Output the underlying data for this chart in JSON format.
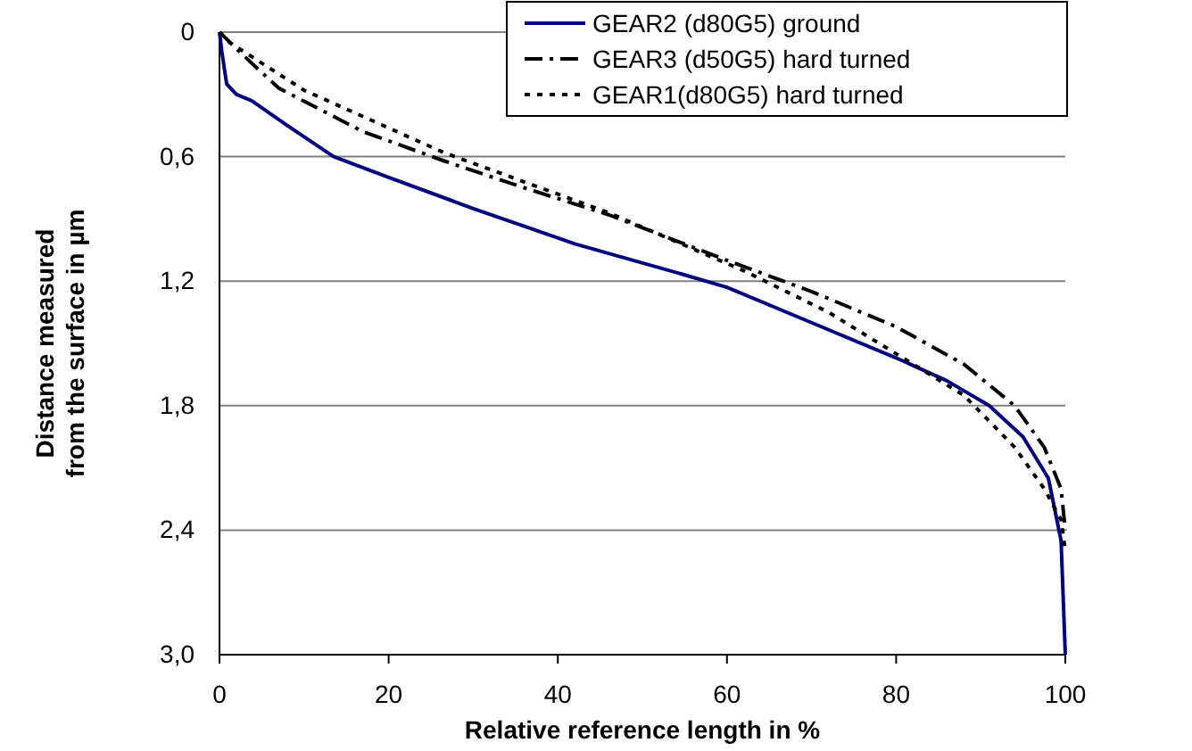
{
  "chart_data": {
    "type": "line",
    "xlabel": "Relative reference length in %",
    "ylabel": "Distance measured from the surface in µm",
    "xlim": [
      0,
      100
    ],
    "xticks": [
      0,
      20,
      40,
      60,
      80,
      100
    ],
    "ylim": [
      3.0,
      0
    ],
    "yticks": [
      {
        "value": 0,
        "label": "0"
      },
      {
        "value": 0.6,
        "label": "0,6"
      },
      {
        "value": 1.2,
        "label": "1,2"
      },
      {
        "value": 1.8,
        "label": "1,8"
      },
      {
        "value": 2.4,
        "label": "2,4"
      },
      {
        "value": 3.0,
        "label": "3,0"
      }
    ],
    "grid": "y",
    "legend": "top right",
    "marker": "none",
    "series": [
      {
        "name": "GEAR2 (d80G5) ground",
        "color": "#000080",
        "line_style": "solid",
        "x": [
          0,
          0.3,
          0.85,
          2,
          3.8,
          8,
          13.5,
          20,
          30,
          42,
          55,
          60,
          70,
          80,
          86,
          91,
          95,
          98,
          99.5,
          100
        ],
        "values": [
          0,
          0.1,
          0.25,
          0.3,
          0.33,
          0.45,
          0.6,
          0.7,
          0.85,
          1.02,
          1.17,
          1.23,
          1.4,
          1.57,
          1.68,
          1.8,
          1.95,
          2.15,
          2.45,
          3.0
        ]
      },
      {
        "name": "GEAR3 (d50G5) hard turned",
        "color": "#000000",
        "line_style": "dashdot",
        "x": [
          0,
          2.5,
          7,
          17,
          26.5,
          36,
          46,
          60,
          70,
          80,
          88,
          94,
          97.5,
          99.5,
          100
        ],
        "values": [
          0,
          0.1,
          0.27,
          0.48,
          0.62,
          0.75,
          0.88,
          1.1,
          1.25,
          1.42,
          1.6,
          1.8,
          2.0,
          2.2,
          2.4
        ]
      },
      {
        "name": "GEAR1(d80G5) hard turned",
        "color": "#000000",
        "line_style": "dotted",
        "x": [
          0,
          1.2,
          10,
          26.5,
          46,
          62,
          72,
          80,
          88,
          94,
          97.5,
          99.5,
          100
        ],
        "values": [
          0,
          0.05,
          0.28,
          0.58,
          0.87,
          1.15,
          1.35,
          1.55,
          1.75,
          2.0,
          2.2,
          2.35,
          2.5
        ]
      }
    ]
  }
}
